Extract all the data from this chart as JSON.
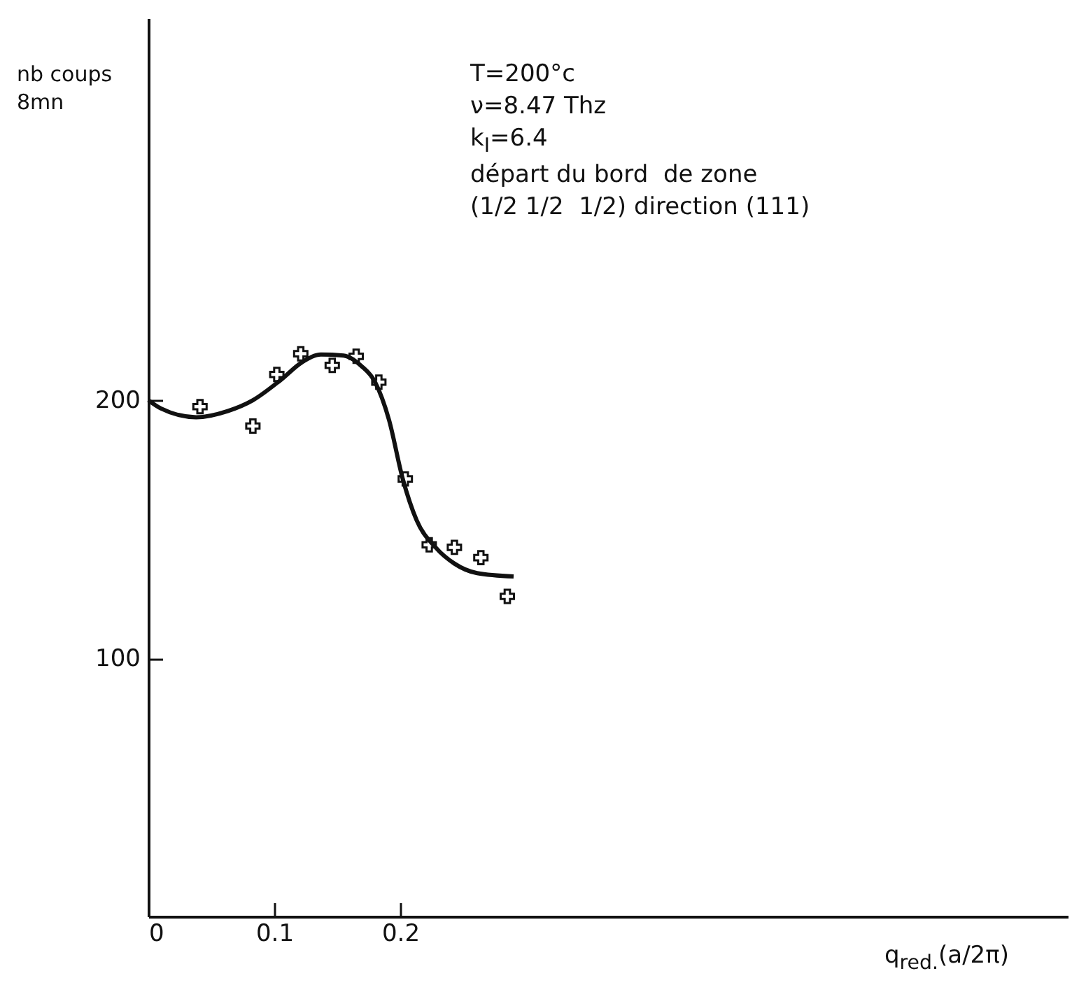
{
  "chart_data": {
    "type": "scatter",
    "xlabel": "q$_{red.}$(a/2π)",
    "ylabel": "nb coups\n8mn",
    "annotations": [
      "T=200°c",
      "ν=8.47 Thz",
      "k$_{I}$=6.4",
      "départ du bord  de zone",
      "(1/2 1/2  1/2) direction (111)"
    ],
    "xlim": [
      0,
      0.73
    ],
    "ylim": [
      0,
      348
    ],
    "xticks": [
      0,
      0.1,
      0.2
    ],
    "yticks": [
      100,
      200
    ],
    "grid": false,
    "series": [
      {
        "color": "#111111",
        "marker": "cross",
        "x": [
          0.041,
          0.083,
          0.102,
          0.121,
          0.146,
          0.165,
          0.183,
          0.204,
          0.223,
          0.243,
          0.264,
          0.285
        ],
        "values": [
          197.5,
          190,
          210,
          218,
          213.5,
          217,
          207,
          169.5,
          144,
          143,
          139,
          124
        ]
      },
      {
        "type": "line",
        "color": "#111111",
        "marker": "none",
        "line_style": "solid",
        "x": [
          0,
          0.01,
          0.038,
          0.063,
          0.083,
          0.105,
          0.122,
          0.137,
          0.155,
          0.169,
          0.18,
          0.191,
          0.202,
          0.213,
          0.228,
          0.243,
          0.261,
          0.29
        ],
        "values": [
          200,
          196.8,
          193.4,
          195.8,
          200,
          207.8,
          214.7,
          217.7,
          217.3,
          213.3,
          207,
          192.5,
          169.5,
          153.5,
          143,
          136.7,
          133,
          131.7
        ]
      }
    ]
  }
}
